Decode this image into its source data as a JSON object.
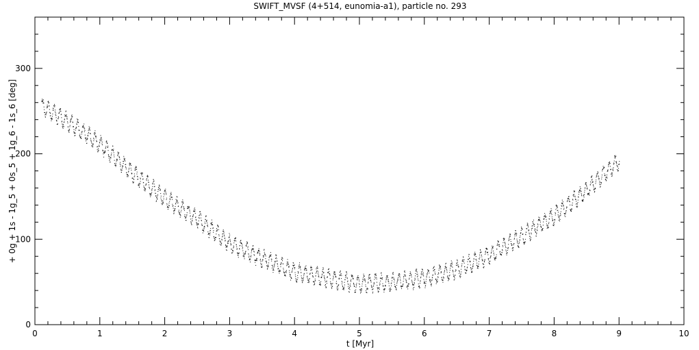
{
  "chart_data": {
    "type": "scatter",
    "title": "SWIFT_MVSF (4+514, eunomia-a1), particle no. 293",
    "xlabel": "t [Myr]",
    "ylabel": "+ 0g + 1s - 1g_5 + 0s_5 + 1g_6 - 1s_6 [deg]",
    "xlim": [
      0,
      10
    ],
    "ylim": [
      0,
      360
    ],
    "x_ticks": [
      0,
      1,
      2,
      3,
      4,
      5,
      6,
      7,
      8,
      9,
      10
    ],
    "x_tick_labels": [
      "0",
      "1",
      "2",
      "3",
      "4",
      "5",
      "6",
      "7",
      "8",
      "9",
      "10"
    ],
    "y_ticks": [
      0,
      100,
      200,
      300
    ],
    "y_tick_labels": [
      "0",
      "100",
      "200",
      "300"
    ],
    "grid": false,
    "legend": "none",
    "marker_color": "#000000",
    "x_range_of_points": [
      0.1,
      9.0
    ],
    "series": [
      {
        "x": [
          0.1,
          0.5,
          1.0,
          1.5,
          2.0,
          2.5,
          3.0,
          3.5,
          4.0,
          4.5,
          5.0,
          5.5,
          6.0,
          6.5,
          7.0,
          7.5,
          8.0,
          8.5,
          9.0
        ],
        "values": [
          256,
          238,
          212,
          178,
          148,
          124,
          95,
          78,
          62,
          55,
          48,
          50,
          55,
          65,
          82,
          104,
          128,
          158,
          193
        ]
      }
    ]
  }
}
